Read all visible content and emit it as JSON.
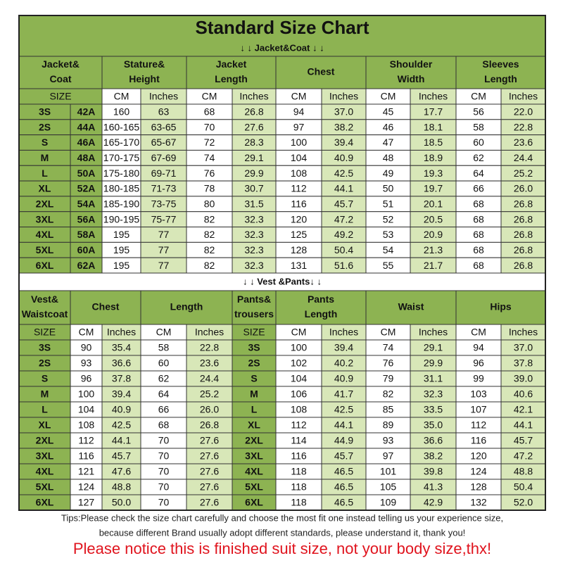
{
  "title": "Standard Size Chart",
  "jacket_section": "↓ ↓ Jacket&Coat ↓ ↓",
  "jacket_table": {
    "headers": [
      [
        "Jacket&",
        "Coat"
      ],
      [
        "Stature&",
        "Height"
      ],
      [
        "Jacket",
        "Length"
      ],
      [
        "Chest"
      ],
      [
        "Shoulder",
        "Width"
      ],
      [
        "Sleeves",
        "Length"
      ]
    ],
    "units": [
      "SIZE",
      "CM",
      "Inches",
      "CM",
      "Inches",
      "CM",
      "Inches",
      "CM",
      "Inches",
      "CM",
      "Inches"
    ],
    "rows": [
      [
        "3S",
        "42A",
        "160",
        "63",
        "68",
        "26.8",
        "94",
        "37.0",
        "45",
        "17.7",
        "56",
        "22.0"
      ],
      [
        "2S",
        "44A",
        "160-165",
        "63-65",
        "70",
        "27.6",
        "97",
        "38.2",
        "46",
        "18.1",
        "58",
        "22.8"
      ],
      [
        "S",
        "46A",
        "165-170",
        "65-67",
        "72",
        "28.3",
        "100",
        "39.4",
        "47",
        "18.5",
        "60",
        "23.6"
      ],
      [
        "M",
        "48A",
        "170-175",
        "67-69",
        "74",
        "29.1",
        "104",
        "40.9",
        "48",
        "18.9",
        "62",
        "24.4"
      ],
      [
        "L",
        "50A",
        "175-180",
        "69-71",
        "76",
        "29.9",
        "108",
        "42.5",
        "49",
        "19.3",
        "64",
        "25.2"
      ],
      [
        "XL",
        "52A",
        "180-185",
        "71-73",
        "78",
        "30.7",
        "112",
        "44.1",
        "50",
        "19.7",
        "66",
        "26.0"
      ],
      [
        "2XL",
        "54A",
        "185-190",
        "73-75",
        "80",
        "31.5",
        "116",
        "45.7",
        "51",
        "20.1",
        "68",
        "26.8"
      ],
      [
        "3XL",
        "56A",
        "190-195",
        "75-77",
        "82",
        "32.3",
        "120",
        "47.2",
        "52",
        "20.5",
        "68",
        "26.8"
      ],
      [
        "4XL",
        "58A",
        "195",
        "77",
        "82",
        "32.3",
        "125",
        "49.2",
        "53",
        "20.9",
        "68",
        "26.8"
      ],
      [
        "5XL",
        "60A",
        "195",
        "77",
        "82",
        "32.3",
        "128",
        "50.4",
        "54",
        "21.3",
        "68",
        "26.8"
      ],
      [
        "6XL",
        "62A",
        "195",
        "77",
        "82",
        "32.3",
        "131",
        "51.6",
        "55",
        "21.7",
        "68",
        "26.8"
      ]
    ]
  },
  "vest_section": "↓ ↓ Vest &Pants↓ ↓",
  "vest_pants_table": {
    "headers": [
      [
        "Vest&",
        "Waistcoat"
      ],
      [
        "Chest"
      ],
      [
        "Length"
      ],
      [
        "Pants&",
        "trousers"
      ],
      [
        "Pants",
        "Length"
      ],
      [
        "Waist"
      ],
      [
        "Hips"
      ]
    ],
    "units": [
      "SIZE",
      "CM",
      "Inches",
      "CM",
      "Inches",
      "SIZE",
      "CM",
      "Inches",
      "CM",
      "Inches",
      "CM",
      "Inches"
    ],
    "rows": [
      [
        "3S",
        "90",
        "35.4",
        "58",
        "22.8",
        "3S",
        "100",
        "39.4",
        "74",
        "29.1",
        "94",
        "37.0"
      ],
      [
        "2S",
        "93",
        "36.6",
        "60",
        "23.6",
        "2S",
        "102",
        "40.2",
        "76",
        "29.9",
        "96",
        "37.8"
      ],
      [
        "S",
        "96",
        "37.8",
        "62",
        "24.4",
        "S",
        "104",
        "40.9",
        "79",
        "31.1",
        "99",
        "39.0"
      ],
      [
        "M",
        "100",
        "39.4",
        "64",
        "25.2",
        "M",
        "106",
        "41.7",
        "82",
        "32.3",
        "103",
        "40.6"
      ],
      [
        "L",
        "104",
        "40.9",
        "66",
        "26.0",
        "L",
        "108",
        "42.5",
        "85",
        "33.5",
        "107",
        "42.1"
      ],
      [
        "XL",
        "108",
        "42.5",
        "68",
        "26.8",
        "XL",
        "112",
        "44.1",
        "89",
        "35.0",
        "112",
        "44.1"
      ],
      [
        "2XL",
        "112",
        "44.1",
        "70",
        "27.6",
        "2XL",
        "114",
        "44.9",
        "93",
        "36.6",
        "116",
        "45.7"
      ],
      [
        "3XL",
        "116",
        "45.7",
        "70",
        "27.6",
        "3XL",
        "116",
        "45.7",
        "97",
        "38.2",
        "120",
        "47.2"
      ],
      [
        "4XL",
        "121",
        "47.6",
        "70",
        "27.6",
        "4XL",
        "118",
        "46.5",
        "101",
        "39.8",
        "124",
        "48.8"
      ],
      [
        "5XL",
        "124",
        "48.8",
        "70",
        "27.6",
        "5XL",
        "118",
        "46.5",
        "105",
        "41.3",
        "128",
        "50.4"
      ],
      [
        "6XL",
        "127",
        "50.0",
        "70",
        "27.6",
        "6XL",
        "118",
        "46.5",
        "109",
        "42.9",
        "132",
        "52.0"
      ]
    ]
  },
  "tips": [
    "Tips:Please check the size chart carefully and choose the most fit one instead telling us your experience size,",
    "because different Brand usually adopt different standards, please understand it, thank you!"
  ],
  "notice": "Please notice this is finished suit size, not your body size,thx!"
}
